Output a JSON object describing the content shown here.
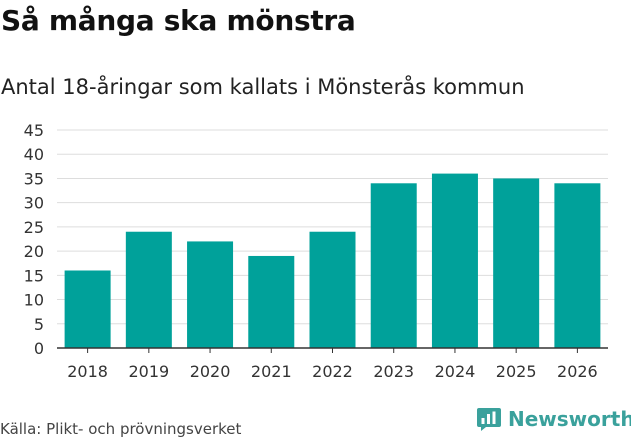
{
  "header": {
    "title": "Så många ska mönstra",
    "subtitle": "Antal 18-åringar som kallats i Mönsterås kommun"
  },
  "footer": {
    "source": "Källa: Plikt- och prövningsverket",
    "brand": "Newsworthy"
  },
  "colors": {
    "bar": "#00a19a",
    "grid": "#dddddd",
    "axis": "#333333",
    "brand": "#3aa19c"
  },
  "chart_data": {
    "type": "bar",
    "title": "Så många ska mönstra",
    "subtitle": "Antal 18-åringar som kallats i Mönsterås kommun",
    "xlabel": "",
    "ylabel": "",
    "categories": [
      "2018",
      "2019",
      "2020",
      "2021",
      "2022",
      "2023",
      "2024",
      "2025",
      "2026"
    ],
    "values": [
      16,
      24,
      22,
      19,
      24,
      34,
      36,
      35,
      34
    ],
    "ylim": [
      0,
      45
    ],
    "yticks": [
      0,
      5,
      10,
      15,
      20,
      25,
      30,
      35,
      40,
      45
    ],
    "grid": true,
    "legend": "none"
  }
}
